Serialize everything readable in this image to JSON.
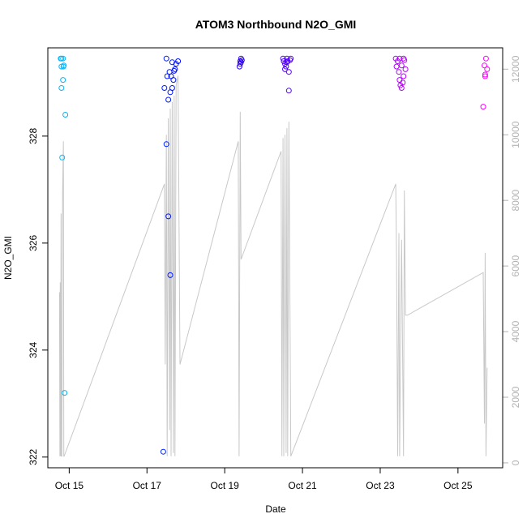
{
  "chart_data": {
    "type": "scatter",
    "title": "ATOM3 Northbound N2O_GMI",
    "xlabel": "Date",
    "ylabel": "N2O_GMI",
    "x_ticks": [
      "Oct 15",
      "Oct 17",
      "Oct 19",
      "Oct 21",
      "Oct 23",
      "Oct 25"
    ],
    "x_tick_values": [
      15,
      17,
      19,
      21,
      23,
      25
    ],
    "xlim": [
      14.45,
      26.15
    ],
    "y_ticks": [
      "322",
      "324",
      "326",
      "328"
    ],
    "y_tick_values": [
      322,
      324,
      326,
      328
    ],
    "ylim": [
      321.8,
      329.65
    ],
    "y2_ticks": [
      "0",
      "2000",
      "4000",
      "6000",
      "8000",
      "10000",
      "12000"
    ],
    "y2_tick_values": [
      0,
      2000,
      4000,
      6000,
      8000,
      10000,
      12000
    ],
    "y2lim": [
      -150,
      12650
    ],
    "grid": false,
    "colors": {
      "series_start": "#00bfff",
      "series_mid": "#0000ff",
      "series_end": "#ff00ff",
      "altitude_line": "#c8c8c8",
      "right_axis": "#b3b3b3"
    },
    "series": [
      {
        "type": "scatter",
        "x": [
          14.78,
          14.8,
          14.84,
          14.8,
          14.84,
          14.82,
          14.88,
          14.9,
          14.85,
          14.8,
          14.86,
          17.42,
          17.45,
          17.5,
          17.52,
          17.55,
          17.58,
          17.6,
          17.62,
          17.65,
          17.68,
          17.7,
          17.72,
          17.75,
          17.8,
          17.5,
          17.55,
          17.6,
          17.65,
          19.38,
          19.4,
          19.42,
          19.44,
          19.4,
          19.42,
          20.5,
          20.52,
          20.55,
          20.58,
          20.6,
          20.62,
          20.65,
          20.68,
          20.7,
          20.55,
          20.6,
          20.65,
          23.4,
          23.42,
          23.45,
          23.48,
          23.5,
          23.52,
          23.55,
          23.58,
          23.6,
          23.62,
          23.65,
          23.5,
          23.55,
          23.6,
          25.65,
          25.68,
          25.7,
          25.72,
          25.75,
          25.7
        ],
        "y": [
          329.45,
          329.3,
          329.45,
          328.9,
          329.05,
          327.6,
          323.2,
          328.4,
          329.3,
          329.45,
          329.32,
          322.1,
          328.9,
          329.45,
          329.12,
          328.68,
          329.2,
          328.82,
          329.12,
          329.38,
          329.05,
          329.22,
          329.25,
          329.35,
          329.4,
          327.85,
          326.5,
          325.4,
          328.9,
          329.3,
          329.4,
          329.45,
          329.42,
          329.35,
          329.38,
          329.45,
          329.4,
          329.35,
          329.3,
          329.45,
          329.4,
          329.2,
          329.42,
          329.45,
          329.25,
          329.38,
          328.85,
          329.45,
          329.3,
          329.4,
          329.2,
          329.45,
          328.95,
          329.32,
          329.0,
          329.12,
          329.42,
          329.25,
          329.05,
          328.9,
          329.45,
          328.55,
          329.32,
          329.12,
          329.45,
          329.25,
          329.15
        ]
      },
      {
        "type": "line",
        "axis": "right",
        "x": [
          14.75,
          14.76,
          14.77,
          14.78,
          14.79,
          14.8,
          14.81,
          14.83,
          14.85,
          14.86,
          14.87,
          17.45,
          17.47,
          17.5,
          17.52,
          17.55,
          17.58,
          17.6,
          17.62,
          17.65,
          17.68,
          17.7,
          17.72,
          17.75,
          17.8,
          17.85,
          19.35,
          19.37,
          19.4,
          19.42,
          20.45,
          20.47,
          20.5,
          20.52,
          20.55,
          20.58,
          20.6,
          20.62,
          20.65,
          20.7,
          23.4,
          23.42,
          23.45,
          23.48,
          23.5,
          23.55,
          23.6,
          23.62,
          23.65,
          23.7,
          25.65,
          25.68,
          25.7,
          25.72,
          25.75
        ],
        "y": [
          5200,
          200,
          5500,
          200,
          7600,
          200,
          200,
          8200,
          9800,
          200,
          200,
          8500,
          3000,
          10000,
          200,
          10500,
          1000,
          10800,
          200,
          11000,
          300,
          11200,
          200,
          11500,
          11800,
          3000,
          9800,
          200,
          10700,
          6200,
          9500,
          200,
          9900,
          200,
          10000,
          300,
          10200,
          200,
          10400,
          200,
          8500,
          6200,
          200,
          7000,
          200,
          6800,
          200,
          8300,
          4500,
          4500,
          5800,
          1200,
          6400,
          200,
          2900
        ]
      }
    ]
  }
}
